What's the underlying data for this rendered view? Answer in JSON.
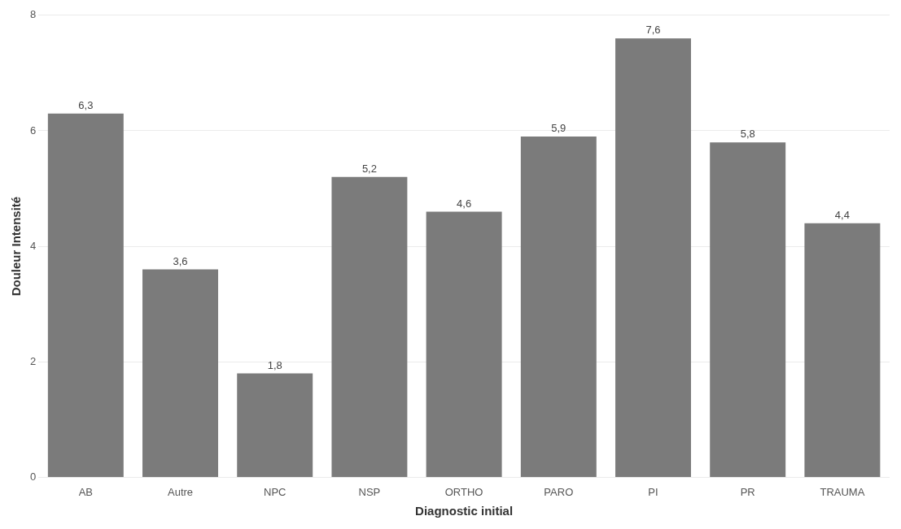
{
  "chart_data": {
    "type": "bar",
    "xlabel": "Diagnostic initial",
    "ylabel": "Douleur Intensité",
    "categories": [
      "AB",
      "Autre",
      "NPC",
      "NSP",
      "ORTHO",
      "PARO",
      "PI",
      "PR",
      "TRAUMA"
    ],
    "values": [
      6.3,
      3.6,
      1.8,
      5.2,
      4.6,
      5.9,
      7.6,
      5.8,
      4.4
    ],
    "value_labels": [
      "6,3",
      "3,6",
      "1,8",
      "5,2",
      "4,6",
      "5,9",
      "7,6",
      "5,8",
      "4,4"
    ],
    "color": "#7b7b7b",
    "ylim": [
      0,
      8
    ],
    "yticks": [
      0,
      2,
      4,
      6,
      8
    ],
    "grid": "y"
  }
}
